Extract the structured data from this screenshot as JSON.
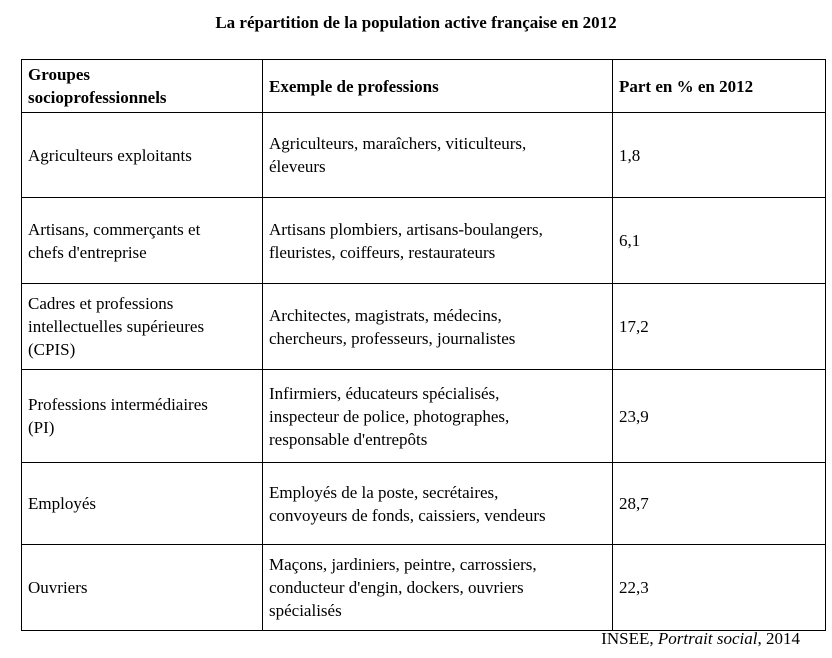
{
  "title": "La répartition de la population active française en 2012",
  "table": {
    "headers": [
      "Groupes\nsocioprofessionnels",
      "Exemple de professions",
      "Part en % en 2012"
    ],
    "rows": [
      {
        "groupe": "Agriculteurs exploitants",
        "exemples": "Agriculteurs, maraîchers, viticulteurs,\néleveurs",
        "part": "1,8"
      },
      {
        "groupe": "Artisans, commerçants et\nchefs d'entreprise",
        "exemples": "Artisans plombiers, artisans-boulangers,\nfleuristes, coiffeurs, restaurateurs",
        "part": "6,1"
      },
      {
        "groupe": "Cadres et professions\nintellectuelles supérieures\n(CPIS)",
        "exemples": "Architectes, magistrats, médecins,\nchercheurs, professeurs, journalistes",
        "part": "17,2"
      },
      {
        "groupe": "Professions intermédiaires\n(PI)",
        "exemples": "Infirmiers, éducateurs spécialisés,\ninspecteur de police, photographes,\nresponsable d'entrepôts",
        "part": "23,9"
      },
      {
        "groupe": "Employés",
        "exemples": "Employés de la poste, secrétaires,\nconvoyeurs de fonds, caissiers, vendeurs",
        "part": "28,7"
      },
      {
        "groupe": "Ouvriers",
        "exemples": "Maçons, jardiniers, peintre, carrossiers,\nconducteur d'engin, dockers, ouvriers\nspécialisés",
        "part": "22,3"
      }
    ]
  },
  "source": {
    "author": "INSEE, ",
    "work": "Portrait social",
    "year": ", 2014"
  }
}
